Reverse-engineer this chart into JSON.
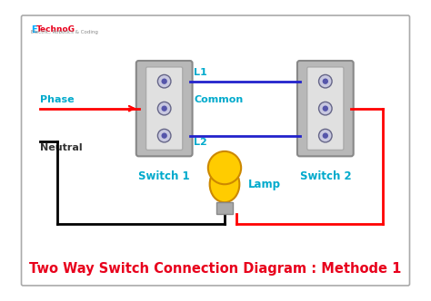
{
  "title": "Two Way Switch Connection Diagram : Methode 1",
  "title_color": "#e8001c",
  "title_fontsize": 10.5,
  "bg_color": "#ffffff",
  "logo_color_e": "#00aaff",
  "logo_color_rest": "#e8001c",
  "switch1_label": "Switch 1",
  "switch2_label": "Switch 2",
  "phase_label": "Phase",
  "neutral_label": "Neutral",
  "common_label": "Common",
  "l1_label": "L1",
  "l2_label": "L2",
  "lamp_label": "Lamp",
  "wire_red": "#ff0000",
  "wire_black": "#000000",
  "wire_blue": "#2222cc",
  "label_color": "#00aacc",
  "neutral_label_color": "#333333"
}
